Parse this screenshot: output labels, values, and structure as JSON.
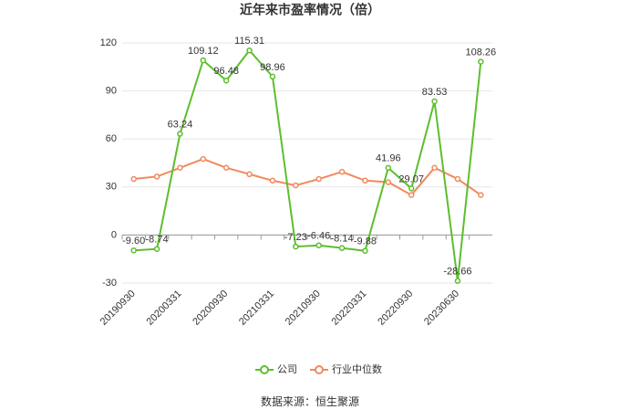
{
  "chart_data": {
    "type": "line",
    "title": "近年来市盈率情况（倍）",
    "categories": [
      "20190930",
      null,
      "20200331",
      null,
      "20200930",
      null,
      "20210331",
      null,
      "20210930",
      null,
      "20220331",
      null,
      "20220930",
      null,
      "20230630",
      null
    ],
    "series": [
      {
        "name": "公司",
        "color": "#5dbe2f",
        "values": [
          -9.6,
          -8.74,
          63.24,
          109.12,
          96.48,
          115.31,
          98.96,
          -7.23,
          -6.46,
          -8.14,
          -9.88,
          41.96,
          29.07,
          83.53,
          -28.66,
          108.26
        ],
        "value_labels": [
          "-9.60",
          "-8.74",
          "63.24",
          "109.12",
          "96.48",
          "115.31",
          "98.96",
          "-7.23",
          "-6.46",
          "-8.14",
          "-9.88",
          "41.96",
          "29.07",
          "83.53",
          "-28.66",
          "108.26"
        ]
      },
      {
        "name": "行业中位数",
        "color": "#f08a5d",
        "values": [
          35,
          36.5,
          42,
          47.5,
          42,
          38,
          34,
          31,
          35,
          39.5,
          34,
          33,
          25,
          42,
          35,
          25
        ]
      }
    ],
    "ylim": [
      -30,
      120
    ],
    "yticks": [
      -30,
      0,
      30,
      60,
      90,
      120
    ],
    "grid": true,
    "source": "数据来源：恒生聚源"
  }
}
